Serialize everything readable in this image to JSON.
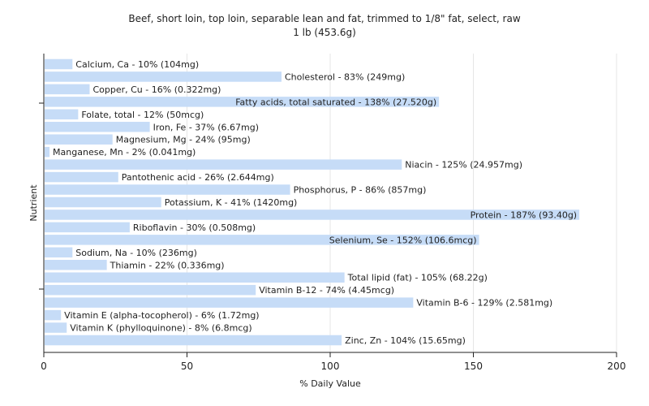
{
  "chart_data": {
    "type": "bar",
    "orientation": "horizontal",
    "title": "Beef, short loin, top loin, separable lean and fat, trimmed to 1/8\" fat, select, raw",
    "subtitle": "1 lb (453.6g)",
    "xlabel": "% Daily Value",
    "ylabel": "Nutrient",
    "xlim": [
      0,
      200
    ],
    "xticks": [
      0,
      50,
      100,
      150,
      200
    ],
    "grid": "vertical",
    "bar_color": "#c6dcf7",
    "categories": [
      "Calcium, Ca",
      "Cholesterol",
      "Copper, Cu",
      "Fatty acids, total saturated",
      "Folate, total",
      "Iron, Fe",
      "Magnesium, Mg",
      "Manganese, Mn",
      "Niacin",
      "Pantothenic acid",
      "Phosphorus, P",
      "Potassium, K",
      "Protein",
      "Riboflavin",
      "Selenium, Se",
      "Sodium, Na",
      "Thiamin",
      "Total lipid (fat)",
      "Vitamin B-12",
      "Vitamin B-6",
      "Vitamin E (alpha-tocopherol)",
      "Vitamin K (phylloquinone)",
      "Zinc, Zn"
    ],
    "values": [
      10,
      83,
      16,
      138,
      12,
      37,
      24,
      2,
      125,
      26,
      86,
      41,
      187,
      30,
      152,
      10,
      22,
      105,
      74,
      129,
      6,
      8,
      104
    ],
    "labels": [
      "Calcium, Ca - 10% (104mg)",
      "Cholesterol - 83% (249mg)",
      "Copper, Cu - 16% (0.322mg)",
      "Fatty acids, total saturated - 138% (27.520g)",
      "Folate, total - 12% (50mcg)",
      "Iron, Fe - 37% (6.67mg)",
      "Magnesium, Mg - 24% (95mg)",
      "Manganese, Mn - 2% (0.041mg)",
      "Niacin - 125% (24.957mg)",
      "Pantothenic acid - 26% (2.644mg)",
      "Phosphorus, P - 86% (857mg)",
      "Potassium, K - 41% (1420mg)",
      "Protein - 187% (93.40g)",
      "Riboflavin - 30% (0.508mg)",
      "Selenium, Se - 152% (106.6mcg)",
      "Sodium, Na - 10% (236mg)",
      "Thiamin - 22% (0.336mg)",
      "Total lipid (fat) - 105% (68.22g)",
      "Vitamin B-12 - 74% (4.45mcg)",
      "Vitamin B-6 - 129% (2.581mg)",
      "Vitamin E (alpha-tocopherol) - 6% (1.72mg)",
      "Vitamin K (phylloquinone) - 8% (6.8mcg)",
      "Zinc, Zn - 104% (15.65mg)"
    ]
  }
}
